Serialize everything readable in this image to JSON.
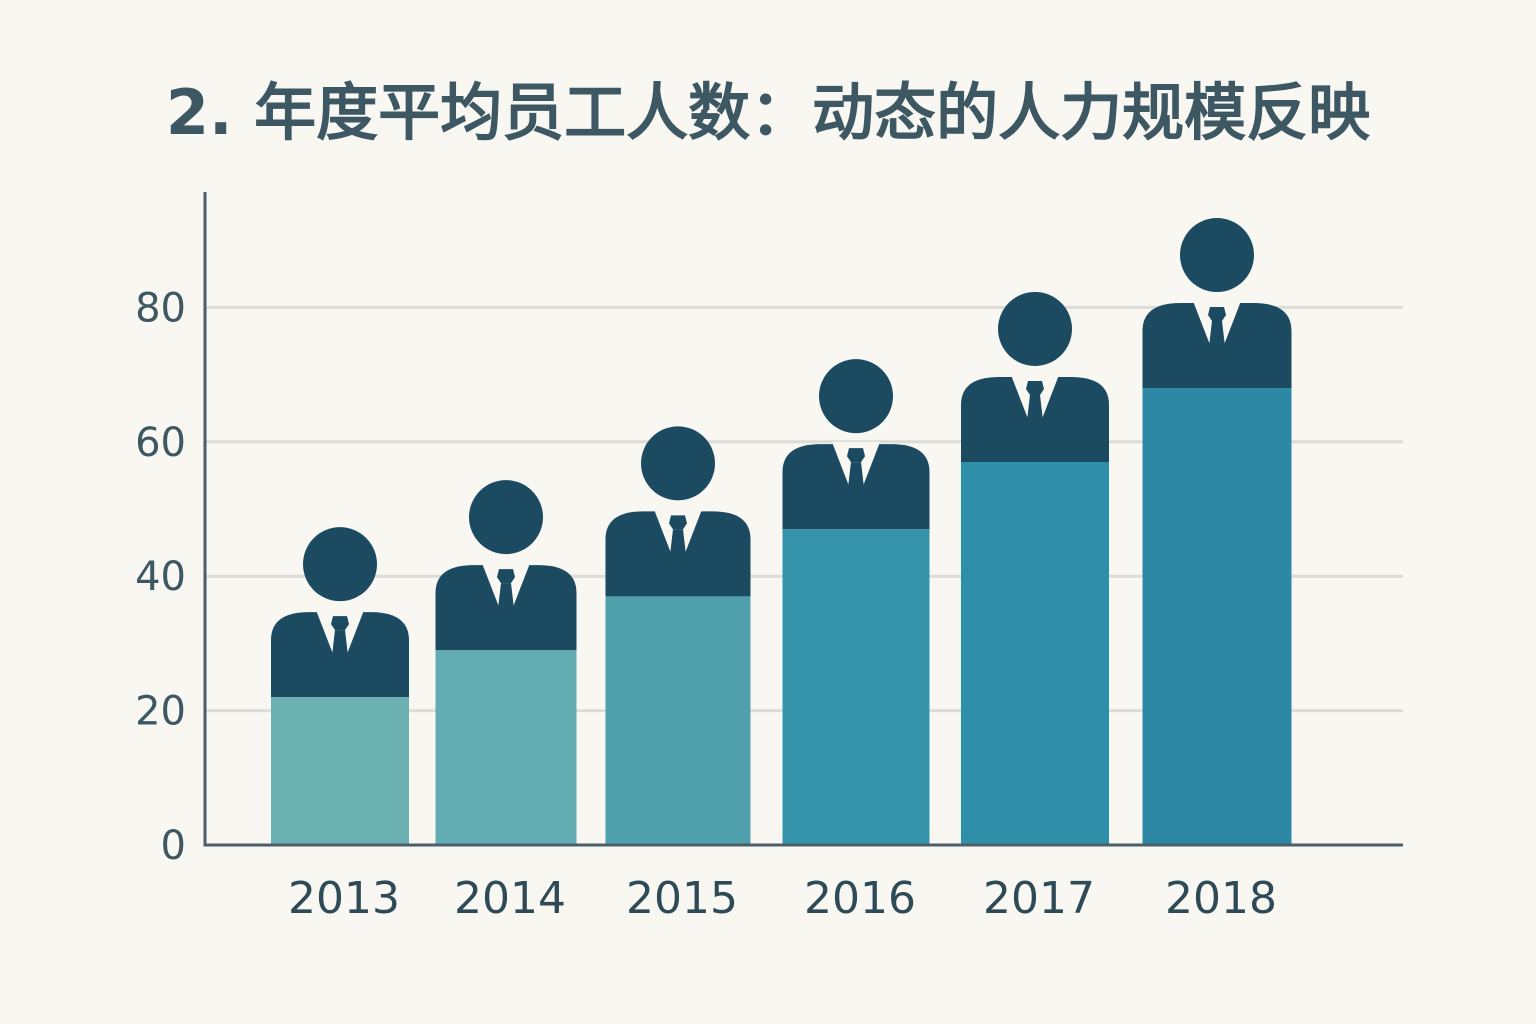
{
  "chart_data": {
    "type": "bar",
    "title": "2. 年度平均员工人数：动态的人力规模反映",
    "xlabel": "",
    "ylabel": "",
    "categories": [
      "2013",
      "2014",
      "2015",
      "2016",
      "2017",
      "2018"
    ],
    "values": [
      22,
      29,
      37,
      47,
      57,
      68
    ],
    "ylim": [
      0,
      90
    ],
    "yticks": [
      0,
      20,
      40,
      60,
      80
    ],
    "grid": true,
    "colors": {
      "bars": [
        "#6cb1b1",
        "#62acb2",
        "#4f9fac",
        "#3594aa",
        "#2f8ea8",
        "#2d88a5"
      ],
      "figure": "#1b4a61",
      "axis": "#4a5f6a",
      "grid": "#dddcd6",
      "background": "#f8f7f2"
    },
    "marker_icon": "person-icon"
  }
}
